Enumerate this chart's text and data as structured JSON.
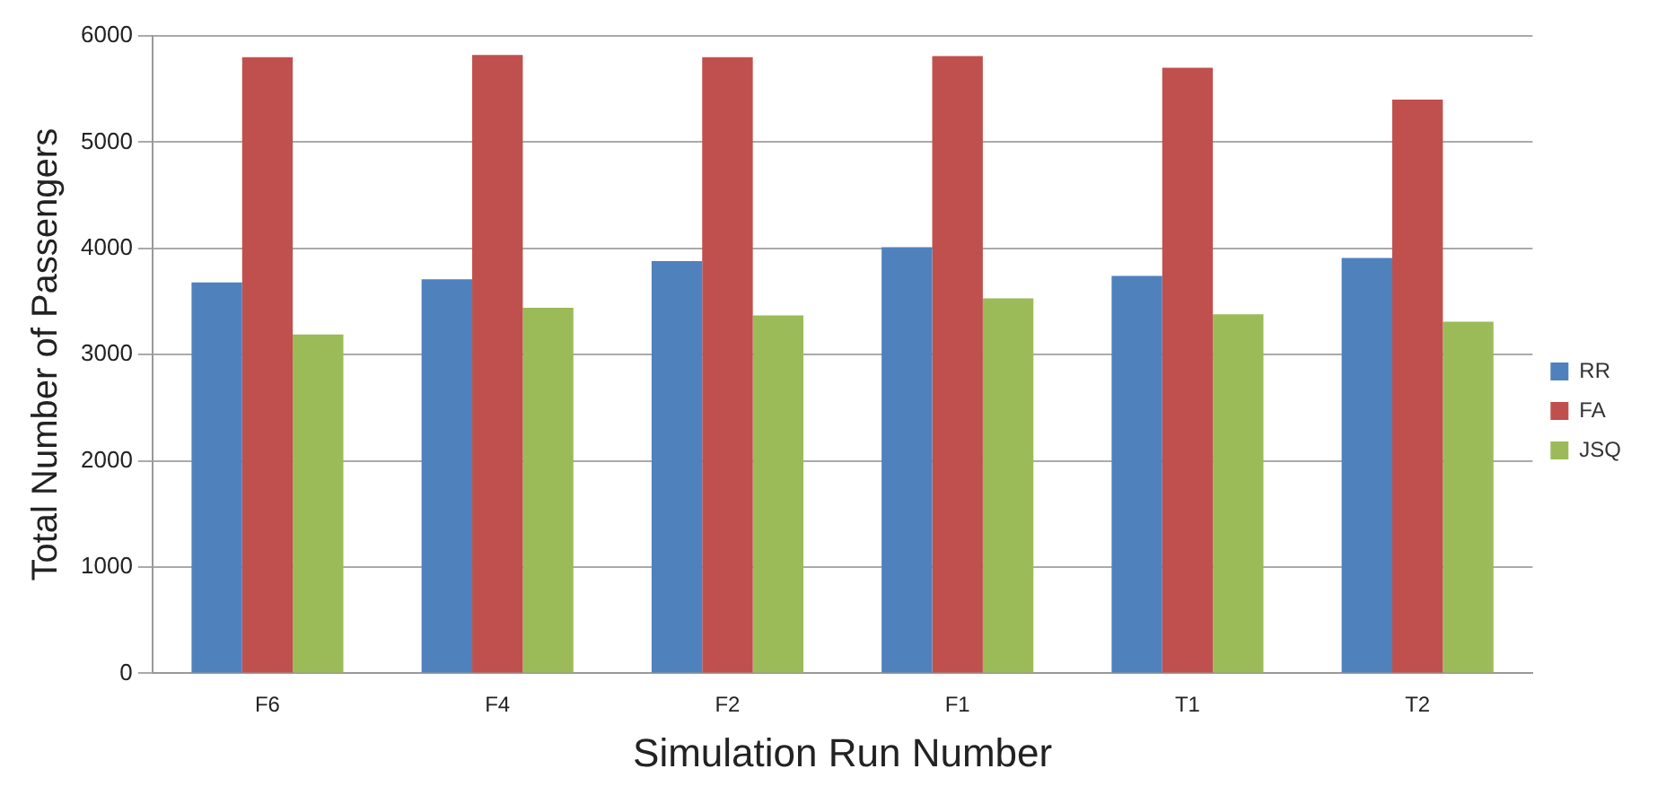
{
  "chart_data": {
    "type": "bar",
    "xlabel": "Simulation Run Number",
    "ylabel": "Total Number of Passengers",
    "categories": [
      "F6",
      "F4",
      "F2",
      "F1",
      "T1",
      "T2"
    ],
    "series": [
      {
        "name": "RR",
        "color": "#4f81bd",
        "values": [
          3680,
          3710,
          3880,
          4010,
          3740,
          3910
        ]
      },
      {
        "name": "FA",
        "color": "#c0504d",
        "values": [
          5800,
          5820,
          5800,
          5810,
          5700,
          5400
        ]
      },
      {
        "name": "JSQ",
        "color": "#9bbb59",
        "values": [
          3190,
          3440,
          3370,
          3530,
          3380,
          3310
        ]
      }
    ],
    "ylim": [
      0,
      6000
    ],
    "yticks": [
      0,
      1000,
      2000,
      3000,
      4000,
      5000,
      6000
    ],
    "grid": "y",
    "legend": "right"
  }
}
